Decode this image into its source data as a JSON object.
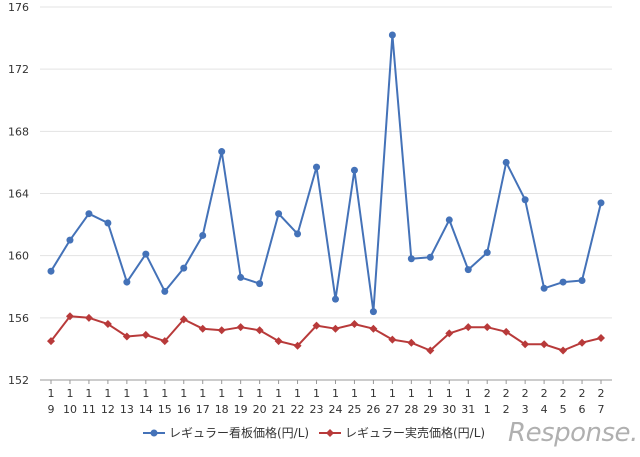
{
  "chart_data": {
    "type": "line",
    "categories": [
      [
        "1",
        "9"
      ],
      [
        "1",
        "10"
      ],
      [
        "1",
        "11"
      ],
      [
        "1",
        "12"
      ],
      [
        "1",
        "13"
      ],
      [
        "1",
        "14"
      ],
      [
        "1",
        "15"
      ],
      [
        "1",
        "16"
      ],
      [
        "1",
        "17"
      ],
      [
        "1",
        "18"
      ],
      [
        "1",
        "19"
      ],
      [
        "1",
        "20"
      ],
      [
        "1",
        "21"
      ],
      [
        "1",
        "22"
      ],
      [
        "1",
        "23"
      ],
      [
        "1",
        "24"
      ],
      [
        "1",
        "25"
      ],
      [
        "1",
        "26"
      ],
      [
        "1",
        "27"
      ],
      [
        "1",
        "28"
      ],
      [
        "1",
        "29"
      ],
      [
        "1",
        "30"
      ],
      [
        "1",
        "31"
      ],
      [
        "2",
        "1"
      ],
      [
        "2",
        "2"
      ],
      [
        "2",
        "3"
      ],
      [
        "2",
        "4"
      ],
      [
        "2",
        "5"
      ],
      [
        "2",
        "6"
      ],
      [
        "2",
        "7"
      ]
    ],
    "ylim": [
      152,
      176
    ],
    "yticks": [
      152,
      156,
      160,
      164,
      168,
      172,
      176
    ],
    "grid": true,
    "legend_position": "bottom",
    "series": [
      {
        "name": "レギュラー看板価格(円/L)",
        "color": "#4472b8",
        "marker": "circle",
        "values": [
          159.0,
          161.0,
          162.7,
          162.1,
          158.3,
          160.1,
          157.7,
          159.2,
          161.3,
          166.7,
          158.6,
          158.2,
          162.7,
          161.4,
          165.7,
          157.2,
          165.5,
          156.4,
          174.2,
          159.8,
          159.9,
          162.3,
          159.1,
          160.2,
          166.0,
          163.6,
          157.9,
          158.3,
          158.4,
          163.4
        ]
      },
      {
        "name": "レギュラー実売価格(円/L)",
        "color": "#b83a3a",
        "marker": "diamond",
        "values": [
          154.5,
          156.1,
          156.0,
          155.6,
          154.8,
          154.9,
          154.5,
          155.9,
          155.3,
          155.2,
          155.4,
          155.2,
          154.5,
          154.2,
          155.5,
          155.3,
          155.6,
          155.3,
          154.6,
          154.4,
          153.9,
          155.0,
          155.4,
          155.4,
          155.1,
          154.3,
          154.3,
          153.9,
          154.4,
          154.7
        ]
      }
    ]
  },
  "watermark": "Response."
}
